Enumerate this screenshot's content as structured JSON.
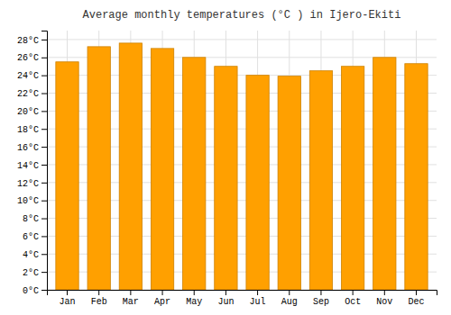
{
  "chart_data": {
    "type": "bar",
    "title": "Average monthly temperatures (°C ) in Ijero-Ekiti",
    "categories": [
      "Jan",
      "Feb",
      "Mar",
      "Apr",
      "May",
      "Jun",
      "Jul",
      "Aug",
      "Sep",
      "Oct",
      "Nov",
      "Dec"
    ],
    "values": [
      25.5,
      27.2,
      27.6,
      27.0,
      26.0,
      25.0,
      24.0,
      23.9,
      24.5,
      25.0,
      26.0,
      25.3
    ],
    "color": "#FFA000",
    "ylim": [
      0,
      29
    ],
    "yticks": [
      {
        "value": 0,
        "label": "0°C"
      },
      {
        "value": 2,
        "label": "2°C"
      },
      {
        "value": 4,
        "label": "4°C"
      },
      {
        "value": 6,
        "label": "6°C"
      },
      {
        "value": 8,
        "label": "8°C"
      },
      {
        "value": 10,
        "label": "10°C"
      },
      {
        "value": 12,
        "label": "12°C"
      },
      {
        "value": 14,
        "label": "14°C"
      },
      {
        "value": 16,
        "label": "16°C"
      },
      {
        "value": 18,
        "label": "18°C"
      },
      {
        "value": 20,
        "label": "20°C"
      },
      {
        "value": 22,
        "label": "22°C"
      },
      {
        "value": 24,
        "label": "24°C"
      },
      {
        "value": 26,
        "label": "26°C"
      },
      {
        "value": 28,
        "label": "28°C"
      }
    ],
    "grid": true
  }
}
